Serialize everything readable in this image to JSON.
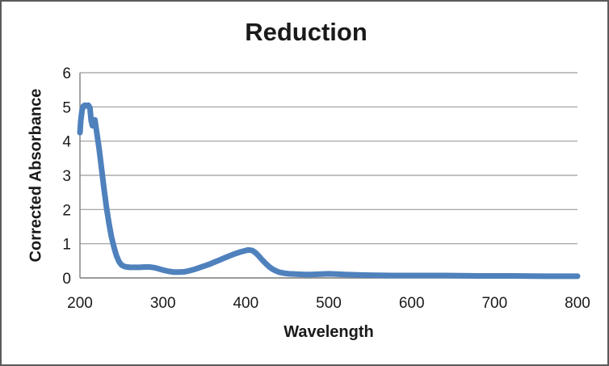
{
  "chart_data": {
    "type": "line",
    "title": "Reduction",
    "xlabel": "Wavelength",
    "ylabel": "Corrected Absorbance",
    "xlim": [
      200,
      800
    ],
    "ylim": [
      0,
      6
    ],
    "x_ticks": [
      200,
      300,
      400,
      500,
      600,
      700,
      800
    ],
    "y_ticks": [
      0,
      1,
      2,
      3,
      4,
      5,
      6
    ],
    "grid": "horizontal",
    "legend": "none",
    "colors": {
      "line": "#4F81BD",
      "grid": "#9c9c9c",
      "axis": "#808080",
      "text": "#1a1a1a",
      "frame": "#5a5a5a",
      "background": "#ffffff"
    },
    "series": [
      {
        "name": "Corrected Absorbance",
        "line_width": 7,
        "points": [
          [
            200,
            4.25
          ],
          [
            201,
            4.6
          ],
          [
            202.5,
            4.9
          ],
          [
            204,
            5.02
          ],
          [
            206,
            5.05
          ],
          [
            208,
            5.03
          ],
          [
            210,
            5.05
          ],
          [
            212,
            4.98
          ],
          [
            213.5,
            4.6
          ],
          [
            215,
            4.45
          ],
          [
            216.5,
            4.5
          ],
          [
            218,
            4.62
          ],
          [
            220,
            4.3
          ],
          [
            223,
            3.8
          ],
          [
            226,
            3.2
          ],
          [
            229,
            2.6
          ],
          [
            232,
            2.05
          ],
          [
            235,
            1.6
          ],
          [
            238,
            1.2
          ],
          [
            241,
            0.9
          ],
          [
            244,
            0.65
          ],
          [
            247,
            0.48
          ],
          [
            250,
            0.38
          ],
          [
            254,
            0.33
          ],
          [
            260,
            0.31
          ],
          [
            266,
            0.31
          ],
          [
            272,
            0.31
          ],
          [
            278,
            0.32
          ],
          [
            284,
            0.32
          ],
          [
            290,
            0.3
          ],
          [
            296,
            0.26
          ],
          [
            302,
            0.22
          ],
          [
            308,
            0.19
          ],
          [
            314,
            0.17
          ],
          [
            320,
            0.17
          ],
          [
            326,
            0.18
          ],
          [
            332,
            0.21
          ],
          [
            338,
            0.25
          ],
          [
            344,
            0.3
          ],
          [
            350,
            0.35
          ],
          [
            356,
            0.4
          ],
          [
            362,
            0.46
          ],
          [
            368,
            0.52
          ],
          [
            374,
            0.58
          ],
          [
            380,
            0.64
          ],
          [
            386,
            0.7
          ],
          [
            392,
            0.75
          ],
          [
            398,
            0.79
          ],
          [
            403,
            0.82
          ],
          [
            408,
            0.8
          ],
          [
            412,
            0.73
          ],
          [
            416,
            0.63
          ],
          [
            420,
            0.52
          ],
          [
            424,
            0.42
          ],
          [
            428,
            0.33
          ],
          [
            432,
            0.26
          ],
          [
            436,
            0.21
          ],
          [
            440,
            0.17
          ],
          [
            446,
            0.14
          ],
          [
            452,
            0.12
          ],
          [
            460,
            0.11
          ],
          [
            470,
            0.1
          ],
          [
            480,
            0.1
          ],
          [
            490,
            0.11
          ],
          [
            500,
            0.12
          ],
          [
            510,
            0.11
          ],
          [
            520,
            0.1
          ],
          [
            535,
            0.09
          ],
          [
            550,
            0.08
          ],
          [
            575,
            0.07
          ],
          [
            600,
            0.07
          ],
          [
            640,
            0.07
          ],
          [
            680,
            0.06
          ],
          [
            720,
            0.06
          ],
          [
            760,
            0.05
          ],
          [
            800,
            0.05
          ]
        ]
      }
    ]
  }
}
